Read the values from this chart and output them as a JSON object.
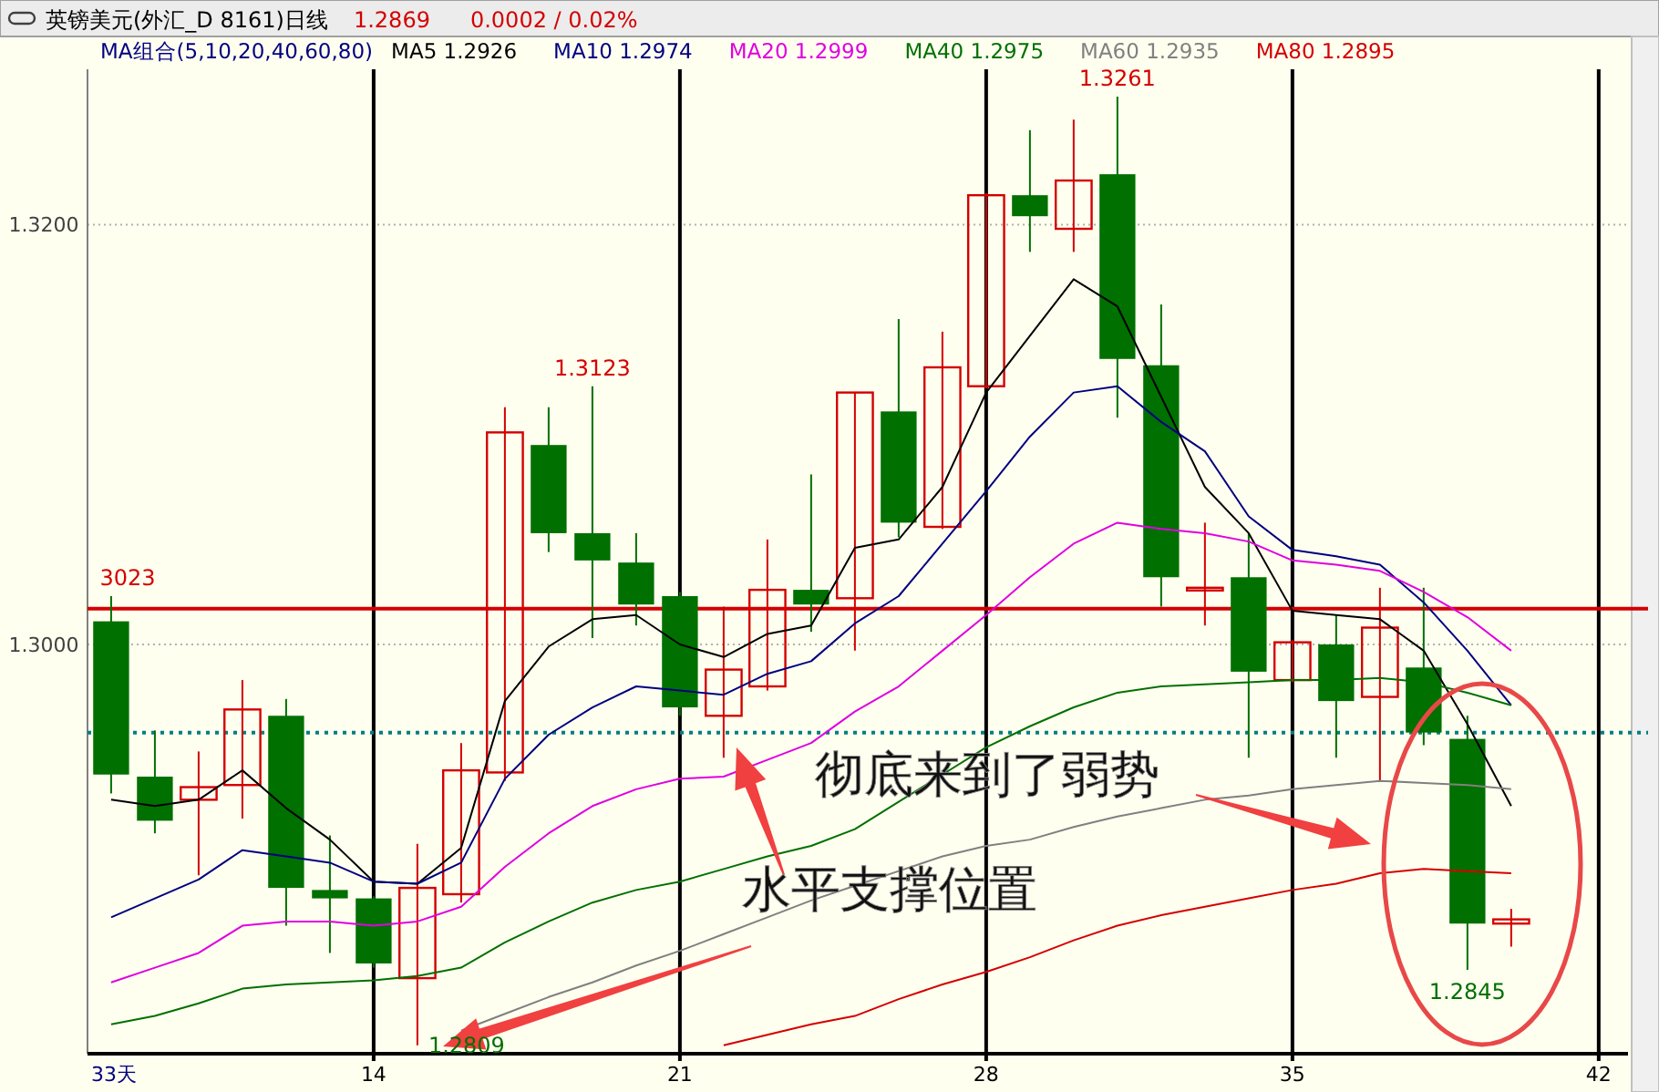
{
  "chart_data": {
    "type": "candlestick",
    "title": "英镑美元(外汇_D 8161)日线",
    "legend_title": "MA组合(5,10,20,40,60,80)",
    "x": [
      8,
      9,
      10,
      11,
      12,
      13,
      14,
      15,
      16,
      17,
      18,
      19,
      20,
      21,
      22,
      23,
      24,
      25,
      26,
      27,
      28,
      29,
      30,
      31,
      32,
      33,
      34,
      35,
      36,
      37,
      38,
      39,
      40
    ],
    "ohlc": [
      [
        1.3011,
        1.3023,
        1.2929,
        1.2938
      ],
      [
        1.2937,
        1.2959,
        1.291,
        1.2916
      ],
      [
        1.2926,
        1.2949,
        1.289,
        1.2932
      ],
      [
        1.2933,
        1.2983,
        1.2917,
        1.2969
      ],
      [
        1.2966,
        1.2974,
        1.2866,
        1.2884
      ],
      [
        1.2883,
        1.2909,
        1.2853,
        1.2879
      ],
      [
        1.2879,
        1.288,
        1.2846,
        1.2848
      ],
      [
        1.2841,
        1.2905,
        1.2809,
        1.2884
      ],
      [
        1.2881,
        1.2953,
        1.2877,
        1.294
      ],
      [
        1.2939,
        1.3113,
        1.2935,
        1.3101
      ],
      [
        1.3095,
        1.3113,
        1.3044,
        1.3053
      ],
      [
        1.3053,
        1.3123,
        1.3003,
        1.304
      ],
      [
        1.3039,
        1.3053,
        1.3009,
        1.3019
      ],
      [
        1.3023,
        1.3025,
        1.2966,
        1.297
      ],
      [
        1.2966,
        1.3018,
        1.2946,
        1.2988
      ],
      [
        1.298,
        1.305,
        1.2978,
        1.3026
      ],
      [
        1.3026,
        1.3081,
        1.3006,
        1.3019
      ],
      [
        1.3022,
        1.312,
        1.2997,
        1.312
      ],
      [
        1.3111,
        1.3155,
        1.3051,
        1.3058
      ],
      [
        1.3056,
        1.3149,
        1.3055,
        1.3132
      ],
      [
        1.3123,
        1.3215,
        1.3122,
        1.3214
      ],
      [
        1.3214,
        1.3245,
        1.3187,
        1.3204
      ],
      [
        1.3198,
        1.325,
        1.3187,
        1.3221
      ],
      [
        1.3224,
        1.3261,
        1.3108,
        1.3136
      ],
      [
        1.3133,
        1.3162,
        1.3018,
        1.3032
      ],
      [
        1.3026,
        1.3058,
        1.3009,
        1.3027
      ],
      [
        1.3032,
        1.3053,
        1.2946,
        1.2987
      ],
      [
        1.2983,
        1.3002,
        1.2982,
        1.3001
      ],
      [
        1.3,
        1.3014,
        1.2946,
        1.2973
      ],
      [
        1.2975,
        1.3027,
        1.2935,
        1.3008
      ],
      [
        1.2989,
        1.3027,
        1.2952,
        1.2958
      ],
      [
        1.2955,
        1.2966,
        1.2845,
        1.2867
      ],
      [
        1.2867,
        1.2874,
        1.2856,
        1.2869
      ]
    ],
    "colors": [
      "#007000",
      "#007000",
      "#d40000",
      "#d40000",
      "#007000",
      "#007000",
      "#007000",
      "#d40000",
      "#d40000",
      "#d40000",
      "#007000",
      "#007000",
      "#007000",
      "#007000",
      "#d40000",
      "#d40000",
      "#007000",
      "#d40000",
      "#007000",
      "#d40000",
      "#d40000",
      "#007000",
      "#d40000",
      "#007000",
      "#007000",
      "#d40000",
      "#007000",
      "#d40000",
      "#007000",
      "#d40000",
      "#007000",
      "#007000",
      "#d40000"
    ],
    "series": [
      {
        "type": "line",
        "name": "MA5 1.2926",
        "color": "#000000",
        "values": [
          1.2926,
          1.2923,
          1.2926,
          1.294,
          1.2922,
          1.2907,
          1.2887,
          1.2886,
          1.2903,
          1.2973,
          1.2999,
          1.3012,
          1.3014,
          1.3,
          1.2994,
          1.3005,
          1.3009,
          1.3046,
          1.305,
          1.3075,
          1.312,
          1.3147,
          1.3174,
          1.3161,
          1.3118,
          1.3075,
          1.3053,
          1.3016,
          1.3014,
          1.3012,
          1.2997,
          1.2962,
          1.2923
        ]
      },
      {
        "type": "line",
        "name": "MA10 1.2974",
        "color": "#000080",
        "values": [
          1.287,
          1.2879,
          1.2888,
          1.2902,
          1.2899,
          1.2896,
          1.2887,
          1.2886,
          1.2896,
          1.2936,
          1.2957,
          1.297,
          1.298,
          1.2978,
          1.2976,
          1.2986,
          1.2992,
          1.301,
          1.3023,
          1.3048,
          1.3073,
          1.3099,
          1.312,
          1.3123,
          1.3106,
          1.3092,
          1.3061,
          1.3045,
          1.3042,
          1.3038,
          1.302,
          1.2997,
          1.2971
        ]
      },
      {
        "type": "line",
        "name": "MA20 1.2999",
        "color": "#e000e0",
        "values": [
          1.2839,
          1.2846,
          1.2853,
          1.2866,
          1.2868,
          1.2868,
          1.2866,
          1.2868,
          1.2875,
          1.2894,
          1.291,
          1.2923,
          1.2931,
          1.2936,
          1.2937,
          1.2945,
          1.2953,
          1.2968,
          1.298,
          1.2997,
          1.3014,
          1.3032,
          1.3048,
          1.3058,
          1.3055,
          1.3053,
          1.3049,
          1.304,
          1.3038,
          1.3035,
          1.3025,
          1.3013,
          1.2997
        ]
      },
      {
        "type": "line",
        "name": "MA40 1.2975",
        "color": "#007000",
        "values": [
          1.2819,
          1.2823,
          1.2829,
          1.2836,
          1.2838,
          1.2839,
          1.284,
          1.2842,
          1.2846,
          1.2858,
          1.2868,
          1.2877,
          1.2883,
          1.2887,
          1.2893,
          1.2899,
          1.2904,
          1.2912,
          1.2925,
          1.2938,
          1.2951,
          1.2961,
          1.297,
          1.2977,
          1.298,
          1.2981,
          1.2982,
          1.2983,
          1.2983,
          1.2984,
          1.2982,
          1.2977,
          1.2971
        ]
      },
      {
        "type": "line",
        "name": "MA60 1.2935",
        "color": "#808080",
        "values": [
          null,
          null,
          null,
          null,
          null,
          null,
          null,
          null,
          1.2816,
          1.2824,
          1.2832,
          1.2839,
          1.2847,
          1.2854,
          1.2862,
          1.287,
          1.2878,
          1.2885,
          1.2892,
          1.2899,
          1.2904,
          1.2907,
          1.2913,
          1.2918,
          1.2922,
          1.2926,
          1.2928,
          1.2931,
          1.2933,
          1.2935,
          1.2934,
          1.2933,
          1.2931
        ]
      },
      {
        "type": "line",
        "name": "MA80 1.2895",
        "color": "#d40000",
        "values": [
          null,
          null,
          null,
          null,
          null,
          null,
          null,
          null,
          null,
          null,
          null,
          null,
          null,
          null,
          1.2809,
          1.2814,
          1.2819,
          1.2823,
          1.2831,
          1.2838,
          1.2844,
          1.2851,
          1.2859,
          1.2866,
          1.2871,
          1.2875,
          1.2879,
          1.2883,
          1.2886,
          1.2891,
          1.2893,
          1.2892,
          1.2891
        ]
      }
    ],
    "xlim": [
      7.46,
      42.67
    ],
    "ylim": [
      1.2805,
      1.3274
    ],
    "xticks": [
      14,
      21,
      28,
      35,
      42
    ],
    "yticks": [
      {
        "value": 1.3,
        "label": "1.3000"
      },
      {
        "value": 1.32,
        "label": "1.3200"
      }
    ],
    "grid": true,
    "legend": "top",
    "ref_lines": [
      {
        "axis": "y",
        "value": 1.3017,
        "color": "#d40000",
        "line_style": "solid"
      },
      {
        "axis": "y",
        "value": 1.2958,
        "color": "#008080",
        "line_style": "dotted"
      }
    ],
    "annotations": [
      "1.2869",
      "0.0002 / 0.02%",
      "33天",
      "彻底来到了弱势",
      "水平支撑位置",
      {
        "text": "3023",
        "x": 8,
        "y": 1.3023
      },
      {
        "text": "1.2809",
        "x": 15,
        "y": 1.2809
      },
      {
        "text": "1.3123",
        "x": 19,
        "y": 1.3123
      },
      {
        "text": "1.3261",
        "x": 31,
        "y": 1.3261
      },
      {
        "text": "1.2845",
        "x": 39,
        "y": 1.2845
      }
    ]
  }
}
